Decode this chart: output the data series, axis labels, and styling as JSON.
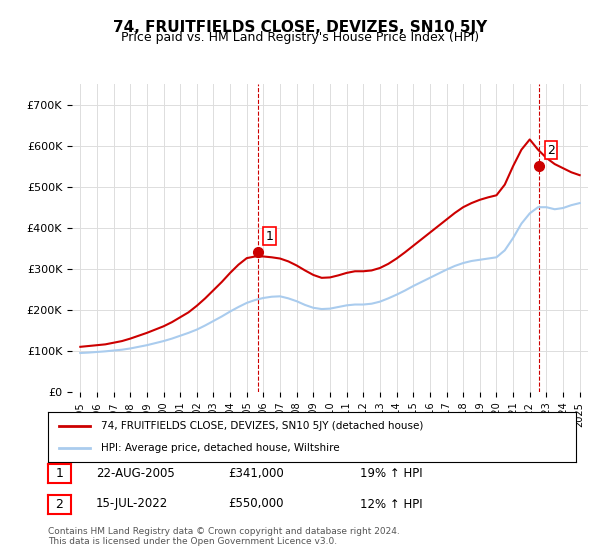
{
  "title": "74, FRUITFIELDS CLOSE, DEVIZES, SN10 5JY",
  "subtitle": "Price paid vs. HM Land Registry's House Price Index (HPI)",
  "legend_line1": "74, FRUITFIELDS CLOSE, DEVIZES, SN10 5JY (detached house)",
  "legend_line2": "HPI: Average price, detached house, Wiltshire",
  "purchase1_label": "1",
  "purchase1_date": "22-AUG-2005",
  "purchase1_price": "£341,000",
  "purchase1_hpi": "19% ↑ HPI",
  "purchase1_year": 2005.65,
  "purchase1_value": 341000,
  "purchase2_label": "2",
  "purchase2_date": "15-JUL-2022",
  "purchase2_price": "£550,000",
  "purchase2_hpi": "12% ↑ HPI",
  "purchase2_year": 2022.54,
  "purchase2_value": 550000,
  "hpi_color": "#aaccee",
  "price_color": "#cc0000",
  "dashed_color": "#cc0000",
  "footer": "Contains HM Land Registry data © Crown copyright and database right 2024.\nThis data is licensed under the Open Government Licence v3.0.",
  "ylim": [
    0,
    750000
  ],
  "yticks": [
    0,
    100000,
    200000,
    300000,
    400000,
    500000,
    600000,
    700000
  ],
  "ytick_labels": [
    "£0",
    "£100K",
    "£200K",
    "£300K",
    "£400K",
    "£500K",
    "£600K",
    "£700K"
  ],
  "xlim_start": 1994.5,
  "xlim_end": 2025.5,
  "hpi_years": [
    1995,
    1995.5,
    1996,
    1996.5,
    1997,
    1997.5,
    1998,
    1998.5,
    1999,
    1999.5,
    2000,
    2000.5,
    2001,
    2001.5,
    2002,
    2002.5,
    2003,
    2003.5,
    2004,
    2004.5,
    2005,
    2005.5,
    2006,
    2006.5,
    2007,
    2007.5,
    2008,
    2008.5,
    2009,
    2009.5,
    2010,
    2010.5,
    2011,
    2011.5,
    2012,
    2012.5,
    2013,
    2013.5,
    2014,
    2014.5,
    2015,
    2015.5,
    2016,
    2016.5,
    2017,
    2017.5,
    2018,
    2018.5,
    2019,
    2019.5,
    2020,
    2020.5,
    2021,
    2021.5,
    2022,
    2022.5,
    2023,
    2023.5,
    2024,
    2024.5,
    2025
  ],
  "hpi_values": [
    95000,
    96000,
    97500,
    99000,
    101000,
    103000,
    106000,
    110000,
    114000,
    119000,
    124000,
    130000,
    137000,
    144000,
    152000,
    162000,
    173000,
    184000,
    196000,
    207000,
    217000,
    224000,
    229000,
    232000,
    233000,
    228000,
    221000,
    212000,
    205000,
    202000,
    203000,
    207000,
    211000,
    213000,
    213000,
    215000,
    220000,
    228000,
    237000,
    247000,
    258000,
    268000,
    278000,
    288000,
    298000,
    307000,
    314000,
    319000,
    322000,
    325000,
    328000,
    345000,
    375000,
    410000,
    435000,
    450000,
    450000,
    445000,
    448000,
    455000,
    460000
  ],
  "price_years": [
    1995,
    1995.5,
    1996,
    1996.5,
    1997,
    1997.5,
    1998,
    1998.5,
    1999,
    1999.5,
    2000,
    2000.5,
    2001,
    2001.5,
    2002,
    2002.5,
    2003,
    2003.5,
    2004,
    2004.5,
    2005,
    2005.5,
    2006,
    2006.5,
    2007,
    2007.5,
    2008,
    2008.5,
    2009,
    2009.5,
    2010,
    2010.5,
    2011,
    2011.5,
    2012,
    2012.5,
    2013,
    2013.5,
    2014,
    2014.5,
    2015,
    2015.5,
    2016,
    2016.5,
    2017,
    2017.5,
    2018,
    2018.5,
    2019,
    2019.5,
    2020,
    2020.5,
    2021,
    2021.5,
    2022,
    2022.5,
    2023,
    2023.5,
    2024,
    2024.5,
    2025
  ],
  "price_values": [
    110000,
    112000,
    114000,
    116000,
    120000,
    124000,
    130000,
    137000,
    144000,
    152000,
    160000,
    170000,
    182000,
    194000,
    210000,
    228000,
    248000,
    268000,
    290000,
    310000,
    326000,
    330000,
    330000,
    328000,
    325000,
    318000,
    308000,
    296000,
    285000,
    278000,
    279000,
    284000,
    290000,
    294000,
    294000,
    296000,
    302000,
    312000,
    325000,
    340000,
    356000,
    372000,
    388000,
    404000,
    420000,
    436000,
    450000,
    460000,
    468000,
    474000,
    479000,
    505000,
    550000,
    590000,
    615000,
    590000,
    570000,
    555000,
    545000,
    535000,
    528000
  ]
}
